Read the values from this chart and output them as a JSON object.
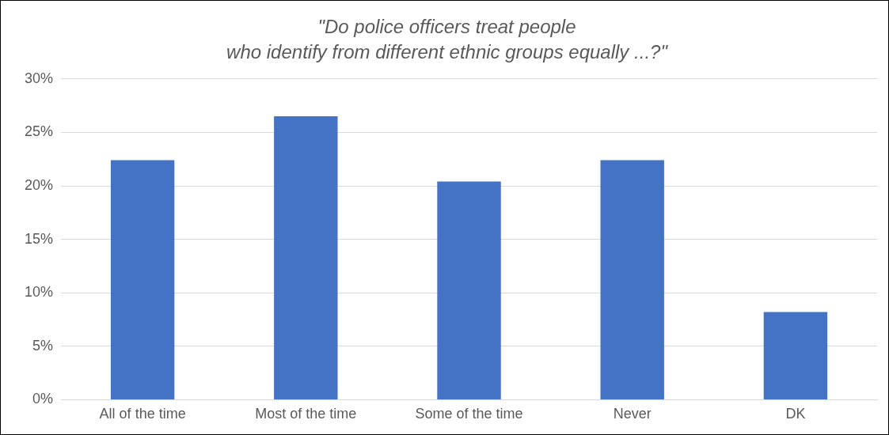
{
  "chart_data": {
    "type": "bar",
    "title": "\"Do police officers treat people\nwho identify from different ethnic groups equally ...?\"",
    "categories": [
      "All of the time",
      "Most of the time",
      "Some of the time",
      "Never",
      "DK"
    ],
    "values": [
      22.4,
      26.5,
      20.4,
      22.4,
      8.2
    ],
    "color": "#4472c4",
    "ylim": [
      0,
      30
    ],
    "yticks": [
      {
        "value": 0,
        "label": "0%"
      },
      {
        "value": 5,
        "label": "5%"
      },
      {
        "value": 10,
        "label": "10%"
      },
      {
        "value": 15,
        "label": "15%"
      },
      {
        "value": 20,
        "label": "20%"
      },
      {
        "value": 25,
        "label": "25%"
      },
      {
        "value": 30,
        "label": "30%"
      }
    ],
    "grid": "y",
    "legend": false
  }
}
